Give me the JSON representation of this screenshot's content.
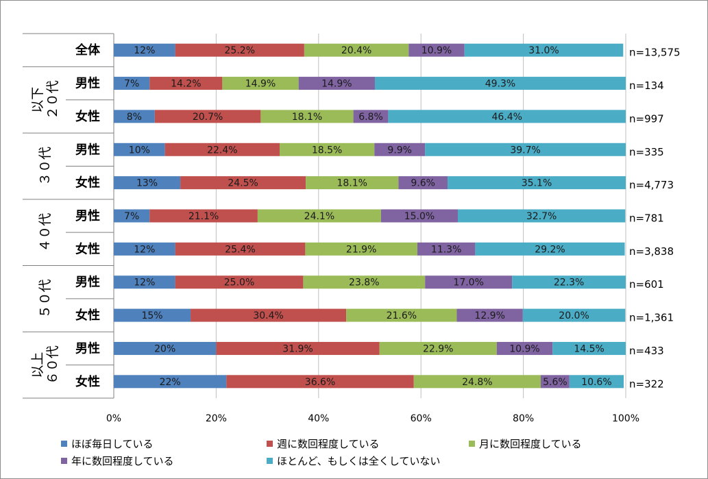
{
  "chart_data": {
    "type": "bar",
    "orientation": "horizontal",
    "stacked": true,
    "percent": true,
    "groups": [
      {
        "label": "",
        "rows": [
          {
            "label": "全体",
            "n": "n=13,575",
            "values": [
              12,
              25.2,
              20.4,
              10.9,
              31.0
            ],
            "labels": [
              "12%",
              "25.2%",
              "20.4%",
              "10.9%",
              "31.0%"
            ]
          }
        ]
      },
      {
        "label": "２０代以下",
        "lines": [
          "２０代",
          "以下"
        ],
        "rows": [
          {
            "label": "男性",
            "n": "n=134",
            "values": [
              7,
              14.2,
              14.9,
              14.9,
              49.3
            ],
            "labels": [
              "7%",
              "14.2%",
              "14.9%",
              "14.9%",
              "49.3%"
            ]
          },
          {
            "label": "女性",
            "n": "n=997",
            "values": [
              8,
              20.7,
              18.1,
              6.8,
              46.4
            ],
            "labels": [
              "8%",
              "20.7%",
              "18.1%",
              "6.8%",
              "46.4%"
            ]
          }
        ]
      },
      {
        "label": "３０代",
        "lines": [
          "３０代"
        ],
        "rows": [
          {
            "label": "男性",
            "n": "n=335",
            "values": [
              10,
              22.4,
              18.5,
              9.9,
              39.7
            ],
            "labels": [
              "10%",
              "22.4%",
              "18.5%",
              "9.9%",
              "39.7%"
            ]
          },
          {
            "label": "女性",
            "n": "n=4,773",
            "values": [
              13,
              24.5,
              18.1,
              9.6,
              35.1
            ],
            "labels": [
              "13%",
              "24.5%",
              "18.1%",
              "9.6%",
              "35.1%"
            ]
          }
        ]
      },
      {
        "label": "４０代",
        "lines": [
          "４０代"
        ],
        "rows": [
          {
            "label": "男性",
            "n": "n=781",
            "values": [
              7,
              21.1,
              24.1,
              15.0,
              32.7
            ],
            "labels": [
              "7%",
              "21.1%",
              "24.1%",
              "15.0%",
              "32.7%"
            ]
          },
          {
            "label": "女性",
            "n": "n=3,838",
            "values": [
              12,
              25.4,
              21.9,
              11.3,
              29.2
            ],
            "labels": [
              "12%",
              "25.4%",
              "21.9%",
              "11.3%",
              "29.2%"
            ]
          }
        ]
      },
      {
        "label": "５０代",
        "lines": [
          "５０代"
        ],
        "rows": [
          {
            "label": "男性",
            "n": "n=601",
            "values": [
              12,
              25.0,
              23.8,
              17.0,
              22.3
            ],
            "labels": [
              "12%",
              "25.0%",
              "23.8%",
              "17.0%",
              "22.3%"
            ]
          },
          {
            "label": "女性",
            "n": "n=1,361",
            "values": [
              15,
              30.4,
              21.6,
              12.9,
              20.0
            ],
            "labels": [
              "15%",
              "30.4%",
              "21.6%",
              "12.9%",
              "20.0%"
            ]
          }
        ]
      },
      {
        "label": "６０代以上",
        "lines": [
          "６０代",
          "以上"
        ],
        "rows": [
          {
            "label": "男性",
            "n": "n=433",
            "values": [
              20,
              31.9,
              22.9,
              10.9,
              14.5
            ],
            "labels": [
              "20%",
              "31.9%",
              "22.9%",
              "10.9%",
              "14.5%"
            ]
          },
          {
            "label": "女性",
            "n": "n=322",
            "values": [
              22,
              36.6,
              24.8,
              5.6,
              10.6
            ],
            "labels": [
              "22%",
              "36.6%",
              "24.8%",
              "5.6%",
              "10.6%"
            ]
          }
        ]
      }
    ],
    "series": [
      {
        "name": "ほぼ毎日している",
        "color": "#4f81bd"
      },
      {
        "name": "週に数回程度している",
        "color": "#c0504d"
      },
      {
        "name": "月に数回程度している",
        "color": "#9bbb59"
      },
      {
        "name": "年に数回程度している",
        "color": "#8064a2"
      },
      {
        "name": "ほとんど、もしくは全くしていない",
        "color": "#4bacc6"
      }
    ],
    "xlim": [
      0,
      100
    ],
    "xticks": [
      "0%",
      "20%",
      "40%",
      "60%",
      "80%",
      "100%"
    ],
    "grid": true,
    "legend_position": "bottom"
  }
}
